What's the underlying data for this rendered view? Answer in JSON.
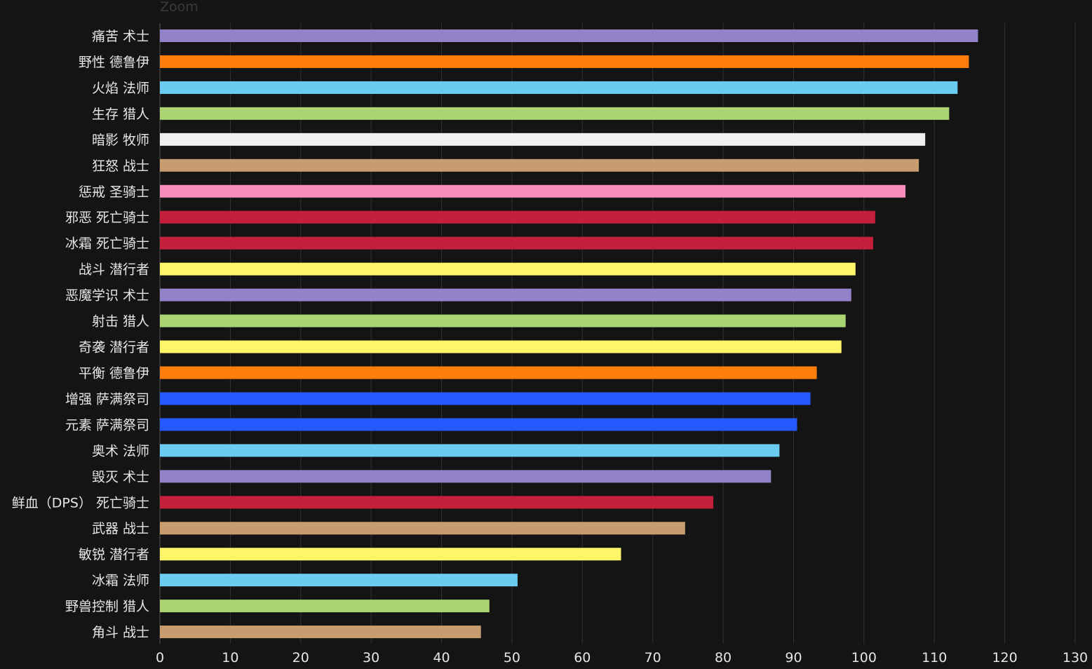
{
  "zoom_label": "Zoom",
  "chart_data": {
    "type": "bar",
    "orientation": "horizontal",
    "title": "",
    "xlabel": "",
    "ylabel": "",
    "xlim": [
      0,
      130
    ],
    "x_ticks": [
      0,
      10,
      20,
      30,
      40,
      50,
      60,
      70,
      80,
      90,
      100,
      110,
      120,
      130
    ],
    "grid": true,
    "categories": [
      "痛苦 术士",
      "野性 德鲁伊",
      "火焰 法师",
      "生存 猎人",
      "暗影 牧师",
      "狂怒 战士",
      "惩戒 圣骑士",
      "邪恶 死亡骑士",
      "冰霜 死亡骑士",
      "战斗 潜行者",
      "恶魔学识 术士",
      "射击 猎人",
      "奇袭 潜行者",
      "平衡 德鲁伊",
      "增强 萨满祭司",
      "元素 萨满祭司",
      "奥术 法师",
      "毁灭 术士",
      "鲜血（DPS） 死亡骑士",
      "武器 战士",
      "敏锐 潜行者",
      "冰霜 法师",
      "野兽控制 猎人",
      "角斗 战士"
    ],
    "values": [
      116.2,
      114.9,
      113.3,
      112.1,
      108.7,
      107.8,
      105.9,
      101.6,
      101.3,
      98.8,
      98.2,
      97.4,
      96.8,
      93.3,
      92.4,
      90.5,
      88.0,
      86.8,
      78.6,
      74.6,
      65.5,
      50.8,
      46.8,
      45.6
    ],
    "colors": [
      "#9482c9",
      "#ff7d0a",
      "#69ccf0",
      "#abd473",
      "#f0f0f0",
      "#c79c6e",
      "#f58cba",
      "#c41f3b",
      "#c41f3b",
      "#fff569",
      "#9482c9",
      "#abd473",
      "#fff569",
      "#ff7d0a",
      "#2459ff",
      "#2459ff",
      "#69ccf0",
      "#9482c9",
      "#c41f3b",
      "#c79c6e",
      "#fff569",
      "#69ccf0",
      "#abd473",
      "#c79c6e"
    ]
  }
}
